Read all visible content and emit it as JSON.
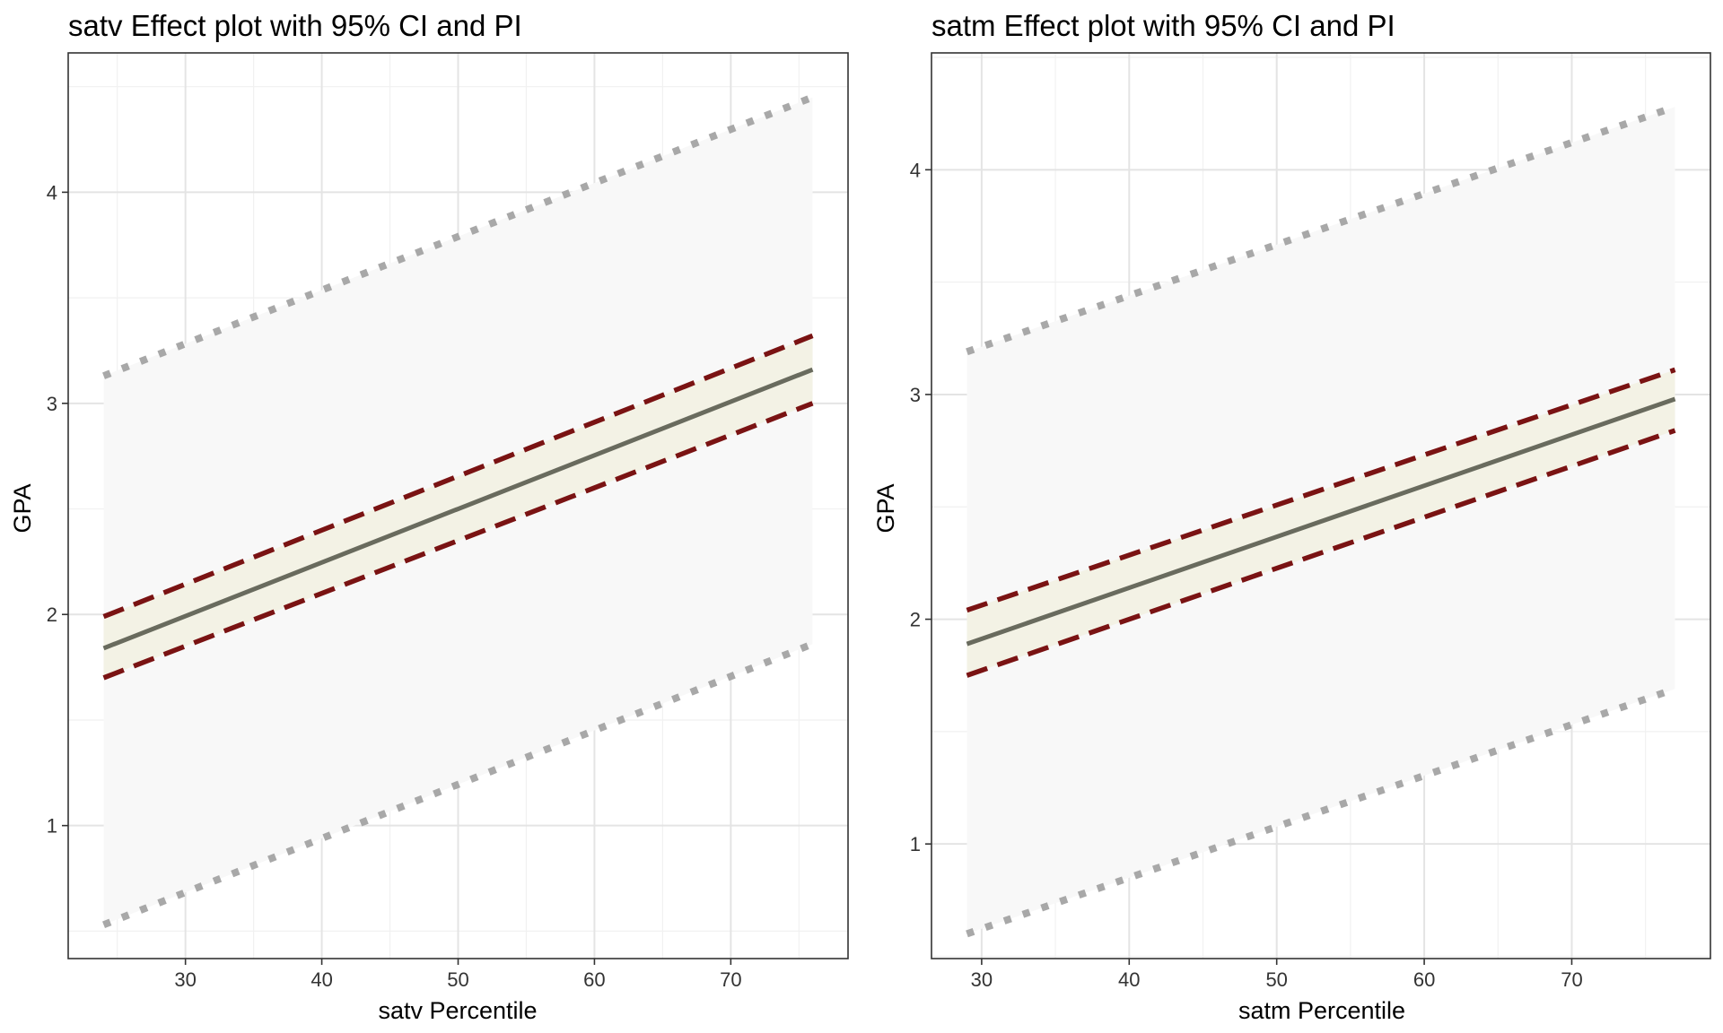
{
  "chart_data": [
    {
      "type": "line",
      "title": "satv Effect plot with 95% CI and PI",
      "xlabel": "satv Percentile",
      "ylabel": "GPA",
      "xlim": [
        21.4,
        78.6
      ],
      "ylim": [
        0.37,
        4.66
      ],
      "x_ticks": [
        30,
        40,
        50,
        60,
        70
      ],
      "x_tick_labels": [
        "30",
        "40",
        "50",
        "60",
        "70"
      ],
      "y_ticks": [
        1,
        2,
        3,
        4
      ],
      "y_tick_labels": [
        "1",
        "2",
        "3",
        "4"
      ],
      "grid": true,
      "legend": "none",
      "x": [
        24,
        76
      ],
      "series": [
        {
          "role": "fit",
          "style": "solid",
          "color": "#696b5e",
          "values": [
            1.84,
            3.16
          ]
        },
        {
          "role": "ci_upper",
          "style": "dashed",
          "color": "#7a1313",
          "values": [
            1.99,
            3.32
          ]
        },
        {
          "role": "ci_lower",
          "style": "dashed",
          "color": "#7a1313",
          "values": [
            1.7,
            3.0
          ]
        },
        {
          "role": "pi_upper",
          "style": "dotted",
          "color": "#a8a8a8",
          "values": [
            3.13,
            4.45
          ]
        },
        {
          "role": "pi_lower",
          "style": "dotted",
          "color": "#a8a8a8",
          "values": [
            0.53,
            1.86
          ]
        }
      ]
    },
    {
      "type": "line",
      "title": "satm Effect plot with 95% CI and PI",
      "xlabel": "satm Percentile",
      "ylabel": "GPA",
      "xlim": [
        26.6,
        79.4
      ],
      "ylim": [
        0.49,
        4.52
      ],
      "x_ticks": [
        30,
        40,
        50,
        60,
        70
      ],
      "x_tick_labels": [
        "30",
        "40",
        "50",
        "60",
        "70"
      ],
      "y_ticks": [
        1,
        2,
        3,
        4
      ],
      "y_tick_labels": [
        "1",
        "2",
        "3",
        "4"
      ],
      "grid": true,
      "legend": "none",
      "x": [
        29,
        77
      ],
      "series": [
        {
          "role": "fit",
          "style": "solid",
          "color": "#696b5e",
          "values": [
            1.89,
            2.98
          ]
        },
        {
          "role": "ci_upper",
          "style": "dashed",
          "color": "#7a1313",
          "values": [
            2.04,
            3.11
          ]
        },
        {
          "role": "ci_lower",
          "style": "dashed",
          "color": "#7a1313",
          "values": [
            1.75,
            2.84
          ]
        },
        {
          "role": "pi_upper",
          "style": "dotted",
          "color": "#a8a8a8",
          "values": [
            3.19,
            4.28
          ]
        },
        {
          "role": "pi_lower",
          "style": "dotted",
          "color": "#a8a8a8",
          "values": [
            0.6,
            1.69
          ]
        }
      ]
    }
  ],
  "colors": {
    "pi_band": "#f8f8f8",
    "ci_band": "#f3f2e5",
    "panel_border": "#333333",
    "grid_major": "#e4e4e4",
    "grid_minor": "#f1f1f1"
  }
}
